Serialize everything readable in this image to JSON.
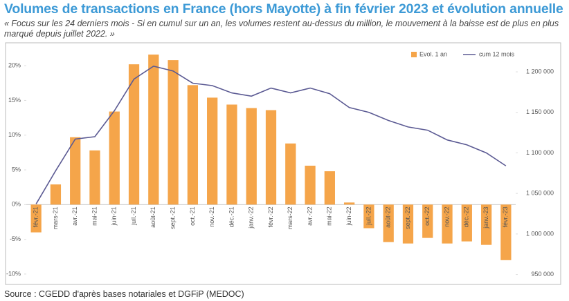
{
  "chart_data": {
    "type": "bar",
    "title": "Volumes de transactions en France (hors Mayotte) à fin février 2023 et évolution annuelle",
    "subtitle": "« Focus sur les 24 derniers mois - Si en cumul sur un an, les volumes restent au-dessus du million, le mouvement à la baisse est de plus en plus marqué depuis juillet 2022. »",
    "source": "Source : CGEDD d'après bases notariales et DGFiP (MEDOC)",
    "categories": [
      "févr.-21",
      "mars-21",
      "avr.-21",
      "mai-21",
      "juin-21",
      "juil.-21",
      "août-21",
      "sept.-21",
      "oct.-21",
      "nov.-21",
      "déc.-21",
      "janv.-22",
      "févr.-22",
      "mars-22",
      "avr.-22",
      "mai-22",
      "juin-22",
      "juil.-22",
      "août-22",
      "sept.-22",
      "oct.-22",
      "nov.-22",
      "déc.-22",
      "janv.-23",
      "févr.-23"
    ],
    "series": [
      {
        "name": "Evol. 1 an",
        "type": "bar",
        "color": "#f5a54a",
        "values": [
          -4,
          2.9,
          9.7,
          7.8,
          13.4,
          20.2,
          21.6,
          20.8,
          17.2,
          15.4,
          14.4,
          13.9,
          13.6,
          8.8,
          5.6,
          4.8,
          0.3,
          -3.4,
          -5.4,
          -5.6,
          -4.8,
          -5.6,
          -5.3,
          -5.8,
          -8.0
        ]
      },
      {
        "name": "cum 12 mois",
        "type": "line",
        "axis": "y2",
        "color": "#5b5a93",
        "values": [
          1037000,
          1078000,
          1117000,
          1120000,
          1152000,
          1191000,
          1207000,
          1201000,
          1186000,
          1183000,
          1174000,
          1170000,
          1180000,
          1174000,
          1180000,
          1173000,
          1156000,
          1150000,
          1140000,
          1132000,
          1128000,
          1116000,
          1110000,
          1100000,
          1084000
        ]
      }
    ],
    "ylim": [
      -11,
      22.5
    ],
    "yticks": [
      {
        "value": -10,
        "label": "-10%"
      },
      {
        "value": -5,
        "label": "-5%"
      },
      {
        "value": 0,
        "label": "0%"
      },
      {
        "value": 5,
        "label": "5%"
      },
      {
        "value": 10,
        "label": "10%"
      },
      {
        "value": 15,
        "label": "15%"
      },
      {
        "value": 20,
        "label": "20%"
      }
    ],
    "y2lim": [
      942000,
      1229000
    ],
    "y2ticks": [
      {
        "value": 950000,
        "label": "950 000"
      },
      {
        "value": 1000000,
        "label": "1 000 000"
      },
      {
        "value": 1050000,
        "label": "1 050 000"
      },
      {
        "value": 1100000,
        "label": "1 100 000"
      },
      {
        "value": 1150000,
        "label": "1 150 000"
      },
      {
        "value": 1200000,
        "label": "1 200 000"
      }
    ],
    "legend": "top-right"
  }
}
